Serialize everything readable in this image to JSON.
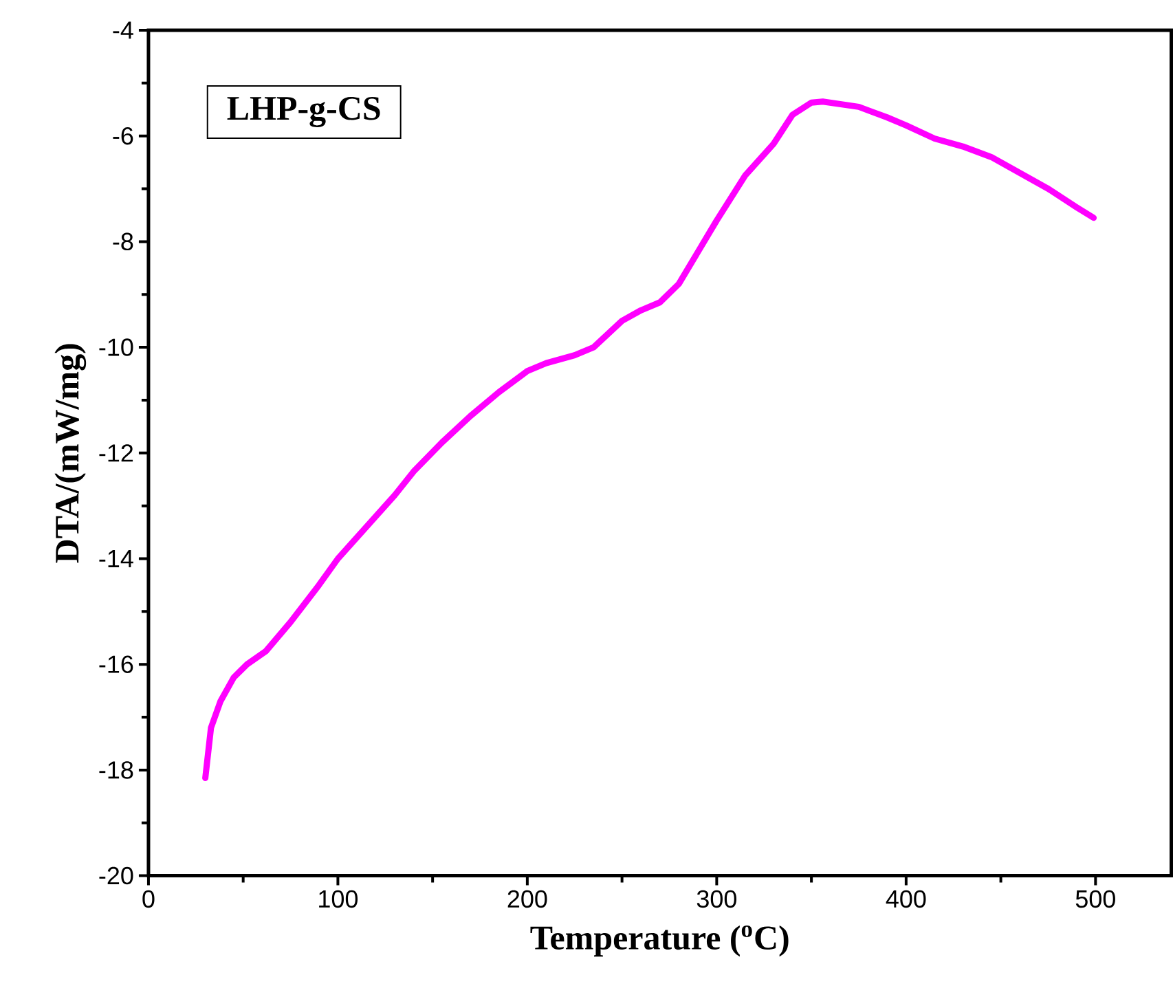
{
  "chart_data": {
    "type": "line",
    "title": "LHP-g-CS",
    "xlabel": "Temperature ($^{o}$C)",
    "ylabel": "DTA/(mW/mg)",
    "x": [
      30,
      33,
      38,
      45,
      52,
      62,
      75,
      90,
      100,
      115,
      130,
      140,
      155,
      170,
      185,
      200,
      210,
      225,
      235,
      250,
      260,
      270,
      280,
      290,
      300,
      315,
      330,
      340,
      350,
      356,
      375,
      390,
      400,
      415,
      430,
      445,
      460,
      475,
      490,
      499
    ],
    "series": [
      {
        "color": "#ff00ff",
        "values": [
          -18.15,
          -17.2,
          -16.7,
          -16.25,
          -16.0,
          -15.75,
          -15.2,
          -14.5,
          -14.0,
          -13.4,
          -12.8,
          -12.35,
          -11.8,
          -11.3,
          -10.85,
          -10.45,
          -10.3,
          -10.15,
          -10.0,
          -9.5,
          -9.3,
          -9.15,
          -8.8,
          -8.2,
          -7.6,
          -6.75,
          -6.15,
          -5.6,
          -5.37,
          -5.35,
          -5.45,
          -5.65,
          -5.8,
          -6.05,
          -6.2,
          -6.4,
          -6.7,
          -7.0,
          -7.35,
          -7.55
        ]
      }
    ],
    "xlim": [
      0,
      540
    ],
    "ylim": [
      -20,
      -4
    ],
    "xticks": [
      0,
      100,
      200,
      300,
      400,
      500
    ],
    "yticks": [
      -20,
      -18,
      -16,
      -14,
      -12,
      -10,
      -8,
      -6,
      -4
    ],
    "marker": "none",
    "line_style": "solid"
  }
}
